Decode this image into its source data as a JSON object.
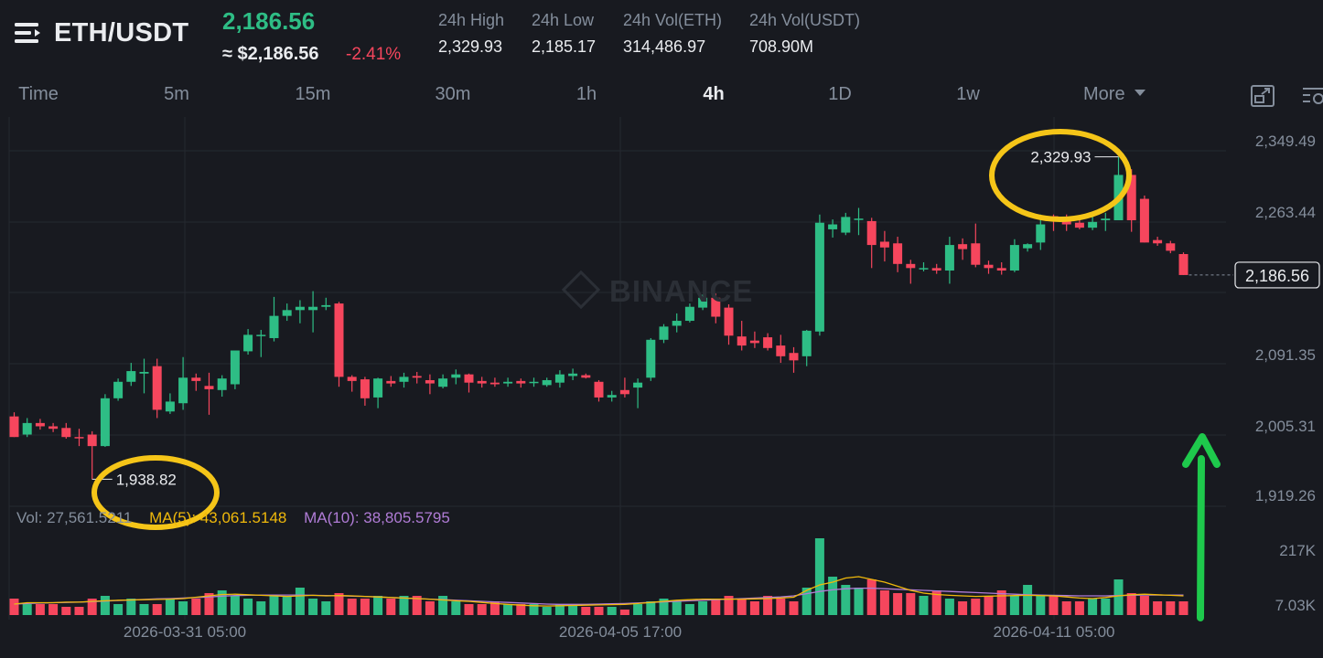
{
  "header": {
    "pair": "ETH/USDT",
    "last_price": "2,186.56",
    "usd_price": "≈ $2,186.56",
    "change_pct": "-2.41%",
    "stats": [
      {
        "label": "24h High",
        "value": "2,329.93"
      },
      {
        "label": "24h Low",
        "value": "2,185.17"
      },
      {
        "label": "24h Vol(ETH)",
        "value": "314,486.97"
      },
      {
        "label": "24h Vol(USDT)",
        "value": "708.90M"
      }
    ]
  },
  "tabs": [
    {
      "label": "Time",
      "active": false
    },
    {
      "label": "5m",
      "active": false
    },
    {
      "label": "15m",
      "active": false
    },
    {
      "label": "30m",
      "active": false
    },
    {
      "label": "1h",
      "active": false
    },
    {
      "label": "4h",
      "active": true
    },
    {
      "label": "1D",
      "active": false
    },
    {
      "label": "1w",
      "active": false
    }
  ],
  "more_label": "More",
  "icons": {
    "menu": "menu-icon",
    "dropdown": "caret-down-icon",
    "fullscreen": "fullscreen-icon",
    "settings": "chart-settings-icon",
    "arrow": "up-arrow-annotation",
    "logo": "binance-logo-icon"
  },
  "colors": {
    "up": "#2ebd85",
    "down": "#f6465d",
    "ma5": "#f0b90b",
    "ma10": "#b07cd6",
    "annotation_circle": "#f5c518",
    "annotation_arrow": "#1ec94c",
    "background": "#181a20"
  },
  "watermark": "BINANCE",
  "price_axis_labels": [
    "2,349.49",
    "2,263.44",
    "2,091.35",
    "2,005.31",
    "1,919.26"
  ],
  "current_price_label": "2,186.56",
  "max_label": "2,329.93",
  "min_label": "1,938.82",
  "volume_axis_labels": [
    "217K",
    "7.03K"
  ],
  "time_labels": [
    "2026-03-31 05:00",
    "2026-04-05 17:00",
    "2026-04-11 05:00"
  ],
  "ma_row": {
    "vol": "Vol: 27,561.5211",
    "ma5": "MA(5): 43,061.5148",
    "ma10": "MA(10): 38,805.5795"
  },
  "chart_data": {
    "type": "candlestick",
    "interval": "4h",
    "grid": true,
    "price_range": [
      1919.26,
      2349.49
    ],
    "volume_range": [
      7030,
      217000
    ],
    "candles": [
      {
        "o": 2015,
        "h": 2020,
        "l": 1990,
        "c": 1990
      },
      {
        "o": 1993,
        "h": 2013,
        "l": 1990,
        "c": 2007
      },
      {
        "o": 2007,
        "h": 2012,
        "l": 1999,
        "c": 2003
      },
      {
        "o": 2003,
        "h": 2007,
        "l": 1996,
        "c": 2000
      },
      {
        "o": 2001,
        "h": 2007,
        "l": 1988,
        "c": 1990
      },
      {
        "o": 1990,
        "h": 2000,
        "l": 1979,
        "c": 1989
      },
      {
        "o": 1993,
        "h": 1997,
        "l": 1938.82,
        "c": 1979
      },
      {
        "o": 1979,
        "h": 2042,
        "l": 1978,
        "c": 2037
      },
      {
        "o": 2037,
        "h": 2061,
        "l": 2034,
        "c": 2057
      },
      {
        "o": 2057,
        "h": 2080,
        "l": 2052,
        "c": 2070
      },
      {
        "o": 2067,
        "h": 2085,
        "l": 2043,
        "c": 2069
      },
      {
        "o": 2076,
        "h": 2085,
        "l": 2013,
        "c": 2023
      },
      {
        "o": 2021,
        "h": 2043,
        "l": 2018,
        "c": 2033
      },
      {
        "o": 2031,
        "h": 2087,
        "l": 2023,
        "c": 2062
      },
      {
        "o": 2062,
        "h": 2067,
        "l": 2046,
        "c": 2058
      },
      {
        "o": 2052,
        "h": 2068,
        "l": 2017,
        "c": 2048
      },
      {
        "o": 2047,
        "h": 2065,
        "l": 2039,
        "c": 2061
      },
      {
        "o": 2054,
        "h": 2093,
        "l": 2048,
        "c": 2095
      },
      {
        "o": 2094,
        "h": 2121,
        "l": 2090,
        "c": 2114
      },
      {
        "o": 2114,
        "h": 2120,
        "l": 2087,
        "c": 2114
      },
      {
        "o": 2110,
        "h": 2160,
        "l": 2106,
        "c": 2137
      },
      {
        "o": 2137,
        "h": 2152,
        "l": 2131,
        "c": 2144
      },
      {
        "o": 2144,
        "h": 2156,
        "l": 2128,
        "c": 2148
      },
      {
        "o": 2144,
        "h": 2167,
        "l": 2117,
        "c": 2148
      },
      {
        "o": 2148,
        "h": 2159,
        "l": 2144,
        "c": 2150
      },
      {
        "o": 2152,
        "h": 2154,
        "l": 2051,
        "c": 2063
      },
      {
        "o": 2063,
        "h": 2065,
        "l": 2045,
        "c": 2058
      },
      {
        "o": 2060,
        "h": 2063,
        "l": 2028,
        "c": 2037
      },
      {
        "o": 2038,
        "h": 2062,
        "l": 2025,
        "c": 2061
      },
      {
        "o": 2058,
        "h": 2064,
        "l": 2051,
        "c": 2055
      },
      {
        "o": 2057,
        "h": 2068,
        "l": 2050,
        "c": 2063
      },
      {
        "o": 2064,
        "h": 2069,
        "l": 2055,
        "c": 2062
      },
      {
        "o": 2059,
        "h": 2066,
        "l": 2042,
        "c": 2055
      },
      {
        "o": 2051,
        "h": 2066,
        "l": 2049,
        "c": 2061
      },
      {
        "o": 2062,
        "h": 2072,
        "l": 2054,
        "c": 2066
      },
      {
        "o": 2066,
        "h": 2067,
        "l": 2044,
        "c": 2056
      },
      {
        "o": 2058,
        "h": 2063,
        "l": 2050,
        "c": 2055
      },
      {
        "o": 2056,
        "h": 2062,
        "l": 2051,
        "c": 2054
      },
      {
        "o": 2055,
        "h": 2062,
        "l": 2051,
        "c": 2057
      },
      {
        "o": 2058,
        "h": 2061,
        "l": 2050,
        "c": 2055
      },
      {
        "o": 2056,
        "h": 2062,
        "l": 2051,
        "c": 2057
      },
      {
        "o": 2053,
        "h": 2062,
        "l": 2051,
        "c": 2059
      },
      {
        "o": 2056,
        "h": 2071,
        "l": 2050,
        "c": 2066
      },
      {
        "o": 2064,
        "h": 2073,
        "l": 2059,
        "c": 2067
      },
      {
        "o": 2065,
        "h": 2067,
        "l": 2061,
        "c": 2062
      },
      {
        "o": 2057,
        "h": 2059,
        "l": 2033,
        "c": 2038
      },
      {
        "o": 2038,
        "h": 2046,
        "l": 2033,
        "c": 2041
      },
      {
        "o": 2047,
        "h": 2062,
        "l": 2038,
        "c": 2042
      },
      {
        "o": 2050,
        "h": 2061,
        "l": 2025,
        "c": 2056
      },
      {
        "o": 2062,
        "h": 2110,
        "l": 2058,
        "c": 2108
      },
      {
        "o": 2108,
        "h": 2127,
        "l": 2104,
        "c": 2124
      },
      {
        "o": 2125,
        "h": 2140,
        "l": 2117,
        "c": 2131
      },
      {
        "o": 2131,
        "h": 2152,
        "l": 2129,
        "c": 2148
      },
      {
        "o": 2147,
        "h": 2163,
        "l": 2144,
        "c": 2159
      },
      {
        "o": 2159,
        "h": 2164,
        "l": 2128,
        "c": 2136
      },
      {
        "o": 2147,
        "h": 2151,
        "l": 2102,
        "c": 2113
      },
      {
        "o": 2112,
        "h": 2131,
        "l": 2095,
        "c": 2101
      },
      {
        "o": 2107,
        "h": 2118,
        "l": 2098,
        "c": 2104
      },
      {
        "o": 2111,
        "h": 2116,
        "l": 2095,
        "c": 2098
      },
      {
        "o": 2101,
        "h": 2114,
        "l": 2080,
        "c": 2088
      },
      {
        "o": 2092,
        "h": 2099,
        "l": 2068,
        "c": 2083
      },
      {
        "o": 2088,
        "h": 2120,
        "l": 2076,
        "c": 2119
      },
      {
        "o": 2118,
        "h": 2260,
        "l": 2113,
        "c": 2250
      },
      {
        "o": 2242,
        "h": 2254,
        "l": 2232,
        "c": 2248
      },
      {
        "o": 2238,
        "h": 2262,
        "l": 2235,
        "c": 2257
      },
      {
        "o": 2254,
        "h": 2268,
        "l": 2235,
        "c": 2255
      },
      {
        "o": 2252,
        "h": 2256,
        "l": 2195,
        "c": 2223
      },
      {
        "o": 2227,
        "h": 2240,
        "l": 2203,
        "c": 2220
      },
      {
        "o": 2225,
        "h": 2233,
        "l": 2190,
        "c": 2200
      },
      {
        "o": 2200,
        "h": 2205,
        "l": 2176,
        "c": 2195
      },
      {
        "o": 2195,
        "h": 2202,
        "l": 2191,
        "c": 2195
      },
      {
        "o": 2195,
        "h": 2200,
        "l": 2188,
        "c": 2192
      },
      {
        "o": 2192,
        "h": 2233,
        "l": 2176,
        "c": 2223
      },
      {
        "o": 2224,
        "h": 2231,
        "l": 2205,
        "c": 2218
      },
      {
        "o": 2225,
        "h": 2249,
        "l": 2196,
        "c": 2199
      },
      {
        "o": 2199,
        "h": 2204,
        "l": 2188,
        "c": 2195
      },
      {
        "o": 2195,
        "h": 2202,
        "l": 2187,
        "c": 2192
      },
      {
        "o": 2192,
        "h": 2230,
        "l": 2190,
        "c": 2223
      },
      {
        "o": 2219,
        "h": 2225,
        "l": 2215,
        "c": 2224
      },
      {
        "o": 2226,
        "h": 2260,
        "l": 2217,
        "c": 2248
      },
      {
        "o": 2258,
        "h": 2260,
        "l": 2240,
        "c": 2255
      },
      {
        "o": 2252,
        "h": 2260,
        "l": 2240,
        "c": 2248
      },
      {
        "o": 2250,
        "h": 2257,
        "l": 2242,
        "c": 2244
      },
      {
        "o": 2244,
        "h": 2263,
        "l": 2241,
        "c": 2251
      },
      {
        "o": 2253,
        "h": 2262,
        "l": 2240,
        "c": 2255
      },
      {
        "o": 2253,
        "h": 2329.93,
        "l": 2254,
        "c": 2308
      },
      {
        "o": 2308,
        "h": 2315,
        "l": 2239,
        "c": 2253
      },
      {
        "o": 2279,
        "h": 2283,
        "l": 2226,
        "c": 2226
      },
      {
        "o": 2229,
        "h": 2233,
        "l": 2222,
        "c": 2225
      },
      {
        "o": 2225,
        "h": 2228,
        "l": 2213,
        "c": 2216
      },
      {
        "o": 2212,
        "h": 2214,
        "l": 2186.56,
        "c": 2186.56
      }
    ],
    "volumes": [
      6,
      4,
      4,
      4,
      3,
      3,
      6,
      7,
      4,
      6,
      4,
      4,
      6,
      5,
      6,
      8,
      9,
      7,
      6,
      5,
      7,
      7,
      10,
      6,
      5,
      8,
      6,
      6,
      7,
      6,
      7,
      7,
      5,
      7,
      5,
      4,
      4,
      5,
      4,
      4,
      4,
      3,
      4,
      4,
      3,
      3,
      3,
      2,
      4,
      5,
      6,
      5,
      4,
      5,
      6,
      7,
      6,
      5,
      7,
      6,
      5,
      10,
      28,
      14,
      11,
      10,
      13,
      9,
      8,
      8,
      7,
      9,
      6,
      5,
      6,
      7,
      9,
      7,
      11,
      7,
      7,
      5,
      5,
      6,
      6,
      13,
      8,
      7,
      5,
      5,
      5
    ],
    "ma5": [
      4,
      4.5,
      4.5,
      4.5,
      4.7,
      4.7,
      5,
      5.2,
      5.4,
      5.5,
      5.6,
      5.7,
      5.8,
      6,
      6.5,
      7,
      7.5,
      7.6,
      7.4,
      7.2,
      7,
      6.8,
      7,
      7.2,
      7,
      7.1,
      7,
      6.8,
      6.6,
      6.4,
      6.2,
      6,
      5.8,
      5.5,
      5.2,
      5,
      4.6,
      4.2,
      3.9,
      3.6,
      3.4,
      3.3,
      3.4,
      3.5,
      3.6,
      3.7,
      3.8,
      3.9,
      4.2,
      4.6,
      5,
      5.4,
      5.6,
      5.8,
      5.8,
      5.8,
      5.8,
      5.9,
      6,
      6.2,
      6.5,
      9,
      11,
      12,
      13.5,
      14,
      13,
      12,
      10.5,
      9,
      8,
      7.5,
      7.2,
      7,
      6.8,
      6.9,
      7,
      7.1,
      7.2,
      7.1,
      7,
      6.6,
      6.2,
      6,
      6.4,
      7,
      7.4,
      7.6,
      7.4,
      7.2,
      7
    ],
    "ma10": [
      4,
      4.2,
      4.4,
      4.5,
      4.6,
      4.7,
      4.9,
      5.1,
      5.3,
      5.5,
      5.7,
      5.9,
      6,
      6.2,
      6.4,
      6.6,
      6.9,
      7.1,
      7.2,
      7.3,
      7.3,
      7.3,
      7.3,
      7.2,
      7.1,
      7,
      6.9,
      6.8,
      6.6,
      6.4,
      6.2,
      6,
      5.8,
      5.6,
      5.4,
      5.2,
      5,
      4.8,
      4.6,
      4.4,
      4.2,
      4,
      3.9,
      3.9,
      3.9,
      4,
      4.1,
      4.2,
      4.4,
      4.6,
      4.8,
      5,
      5.2,
      5.4,
      5.6,
      5.8,
      6,
      6.2,
      6.4,
      6.6,
      7,
      7.8,
      8.6,
      9.2,
      9.6,
      9.8,
      9.8,
      9.6,
      9.4,
      9.2,
      9,
      8.8,
      8.6,
      8.4,
      8.2,
      8,
      7.8,
      7.6,
      7.4,
      7.3,
      7.2,
      7.1,
      7,
      7,
      7,
      7.1,
      7.2,
      7.3,
      7.3,
      7.3,
      7.3
    ]
  }
}
